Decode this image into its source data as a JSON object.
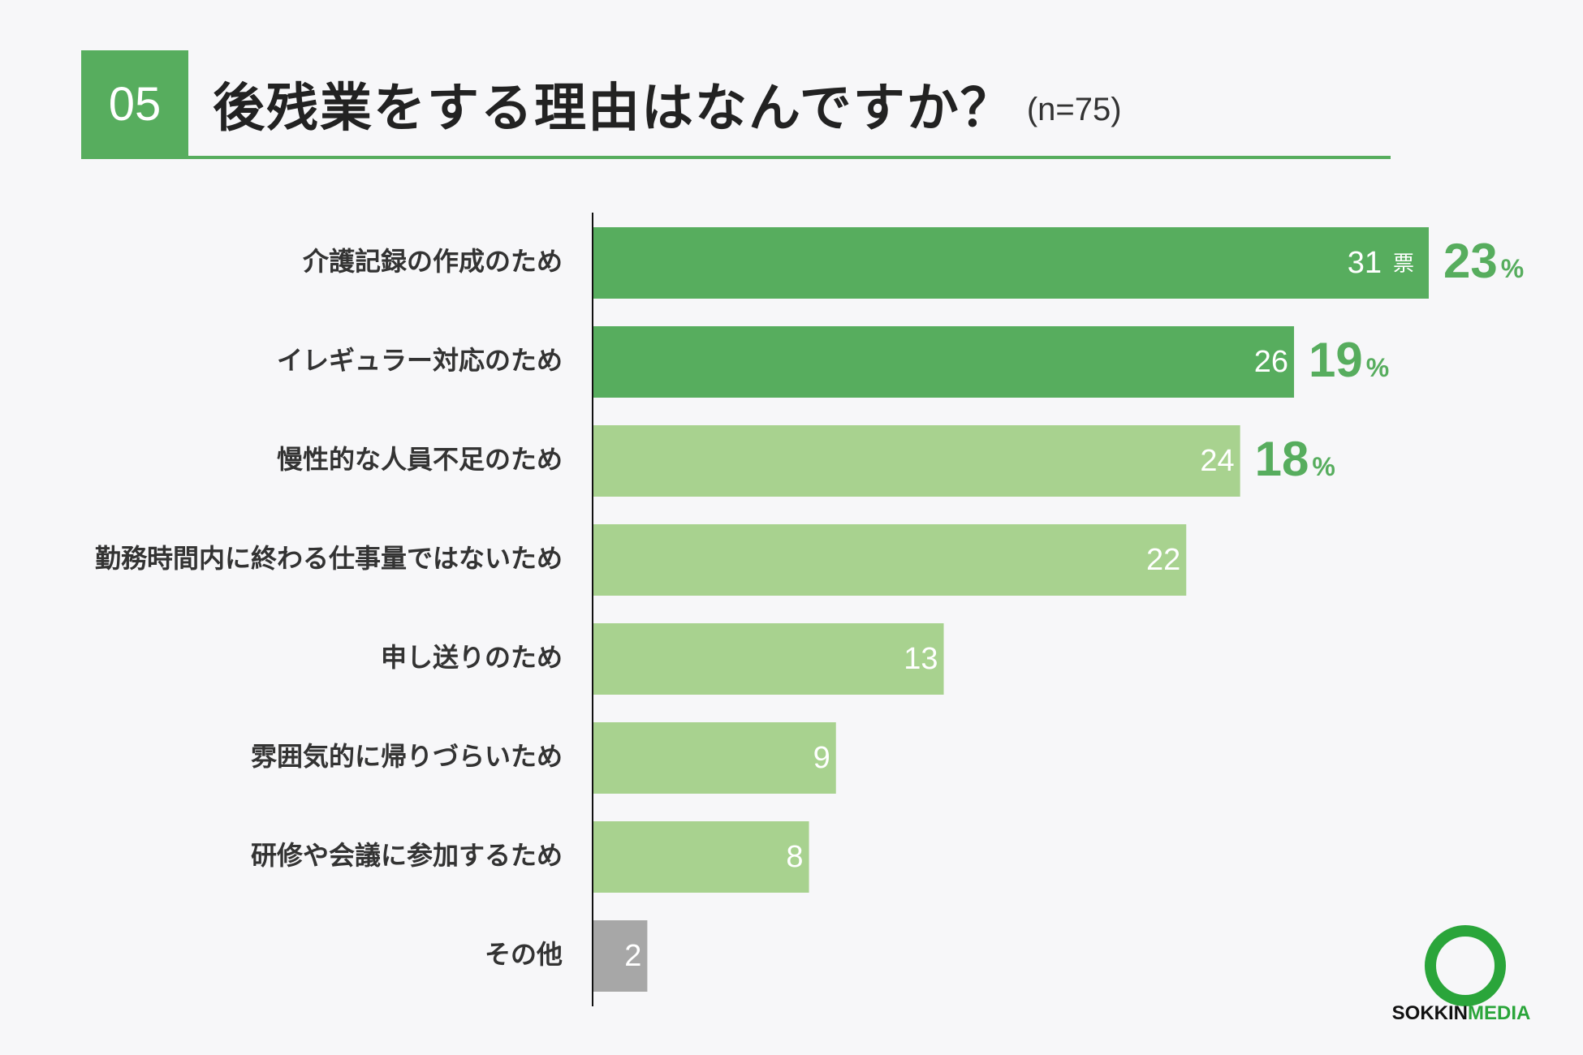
{
  "header": {
    "number": "05",
    "title": "後残業をする理由はなんですか？",
    "sample": "(n=75)"
  },
  "chart_data": {
    "type": "bar",
    "orientation": "horizontal",
    "categories": [
      "介護記録の作成のため",
      "イレギュラー対応のため",
      "慢性的な人員不足のため",
      "勤務時間内に終わる仕事量ではないため",
      "申し送りのため",
      "雰囲気的に帰りづらいため",
      "研修や会議に参加するため",
      "その他"
    ],
    "values": [
      31,
      26,
      24,
      22,
      13,
      9,
      8,
      2
    ],
    "value_labels": [
      "31",
      "26",
      "24",
      "22",
      "13",
      "9",
      "8",
      "2"
    ],
    "first_value_unit": "票",
    "percent_labels": [
      "23",
      "19",
      "18"
    ],
    "percent_symbol": "%",
    "xlim": [
      0,
      31
    ],
    "bar_colors": [
      "#57ad5e",
      "#57ad5e",
      "#a8d28f",
      "#a8d28f",
      "#a8d28f",
      "#a8d28f",
      "#a8d28f",
      "#a7a7a7"
    ],
    "percent_color": "#57ad5e"
  },
  "logo": {
    "part1": "SOKKIN",
    "part2": "MEDIA"
  }
}
